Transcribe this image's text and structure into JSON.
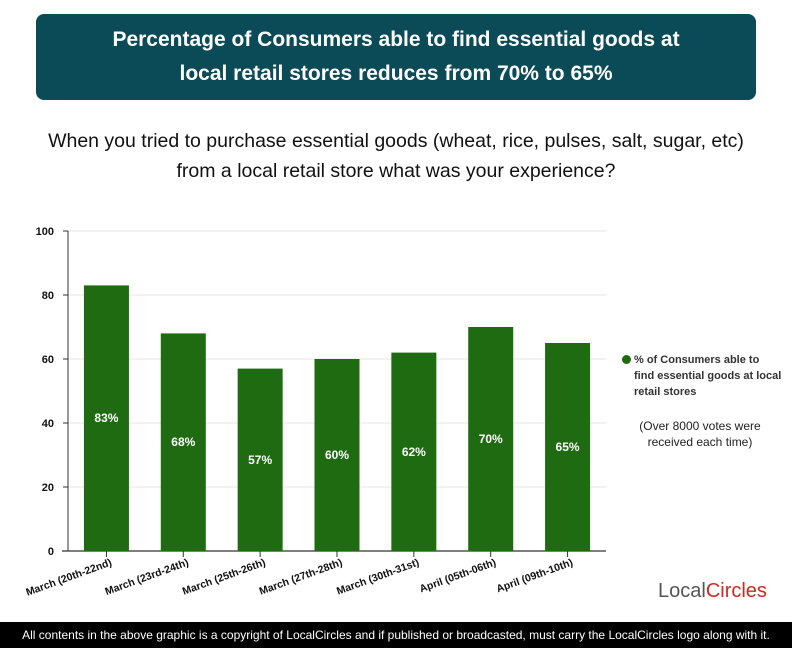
{
  "header": {
    "line1": "Percentage of Consumers able to find essential goods at",
    "line2": "local retail stores reduces from 70% to 65%"
  },
  "question": "When you tried to purchase essential goods (wheat, rice, pulses, salt, sugar, etc) from a local retail store what was your experience?",
  "chart_data": {
    "type": "bar",
    "categories": [
      "March (20th-22nd)",
      "March (23rd-24th)",
      "March (25th-26th)",
      "March (27th-28th)",
      "March (30th-31st)",
      "April (05th-06th)",
      "April (09th-10th)"
    ],
    "series": [
      {
        "name": "% of Consumers able to find essential goods at local retail stores",
        "values": [
          83,
          68,
          57,
          60,
          62,
          70,
          65
        ],
        "color": "#1e6b12"
      }
    ],
    "data_labels": [
      "83%",
      "68%",
      "57%",
      "60%",
      "62%",
      "70%",
      "65%"
    ],
    "yticks": [
      0,
      20,
      40,
      60,
      80,
      100
    ],
    "ylim": [
      0,
      100
    ],
    "grid": true,
    "legend_position": "right"
  },
  "legend": {
    "label": "% of Consumers able to find essential goods at local retail stores",
    "note": "(Over 8000 votes were received each time)"
  },
  "logo": {
    "text_a": "Local",
    "text_b": "Circles",
    "accent": "#d4281f"
  },
  "footer": "All contents in the above graphic is a copyright of LocalCircles and if published or broadcasted, must carry the LocalCircles logo along with it."
}
